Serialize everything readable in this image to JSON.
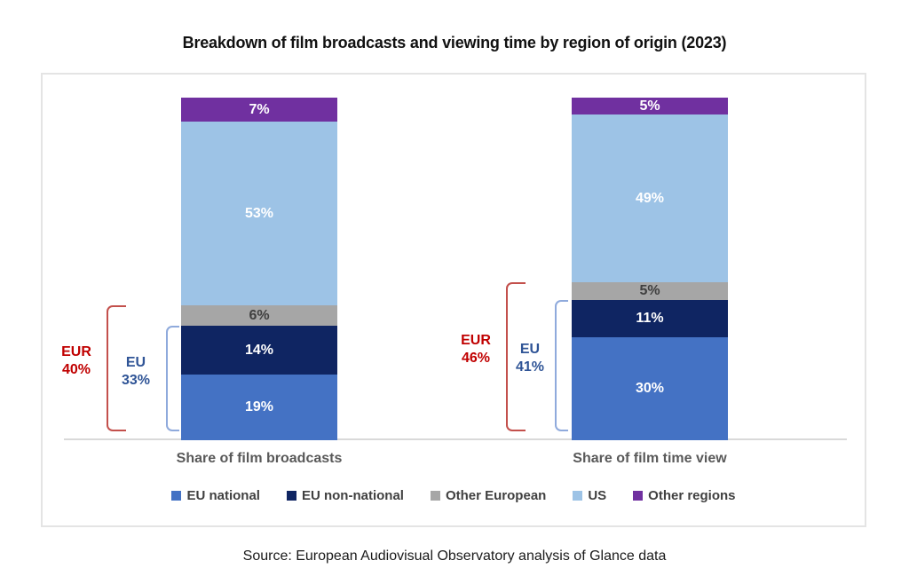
{
  "title": "Breakdown of film broadcasts and viewing time by region of origin (2023)",
  "source": "Source: European Audiovisual Observatory analysis of Glance data",
  "chart_data": {
    "type": "bar",
    "stacked": true,
    "categories": [
      "Share of film broadcasts",
      "Share of film time view"
    ],
    "series": [
      {
        "name": "EU national",
        "color": "#4472C4",
        "label_color": "#FFFFFF",
        "values": [
          19,
          30
        ]
      },
      {
        "name": "EU non-national",
        "color": "#0F2562",
        "label_color": "#FFFFFF",
        "values": [
          14,
          11
        ]
      },
      {
        "name": "Other European",
        "color": "#A6A6A6",
        "label_color": "#404040",
        "values": [
          6,
          5
        ]
      },
      {
        "name": "US",
        "color": "#9DC3E6",
        "label_color": "#FFFFFF",
        "values": [
          53,
          49
        ]
      },
      {
        "name": "Other regions",
        "color": "#7030A0",
        "label_color": "#FFFFFF",
        "values": [
          7,
          5
        ]
      }
    ],
    "value_suffix": "%",
    "ylim": [
      0,
      100
    ],
    "grid": false,
    "legend_position": "bottom",
    "brackets": [
      {
        "bar": 0,
        "label": "EUR",
        "value": "40%",
        "span_series": 3,
        "style": "eur"
      },
      {
        "bar": 0,
        "label": "EU",
        "value": "33%",
        "span_series": 2,
        "style": "eu"
      },
      {
        "bar": 1,
        "label": "EUR",
        "value": "46%",
        "span_series": 3,
        "style": "eur"
      },
      {
        "bar": 1,
        "label": "EU",
        "value": "41%",
        "span_series": 2,
        "style": "eu"
      }
    ],
    "bracket_colors": {
      "eur_line": "#C3504C",
      "eur_text": "#C00000",
      "eu_line": "#8FAADC",
      "eu_text": "#2F5496"
    }
  }
}
